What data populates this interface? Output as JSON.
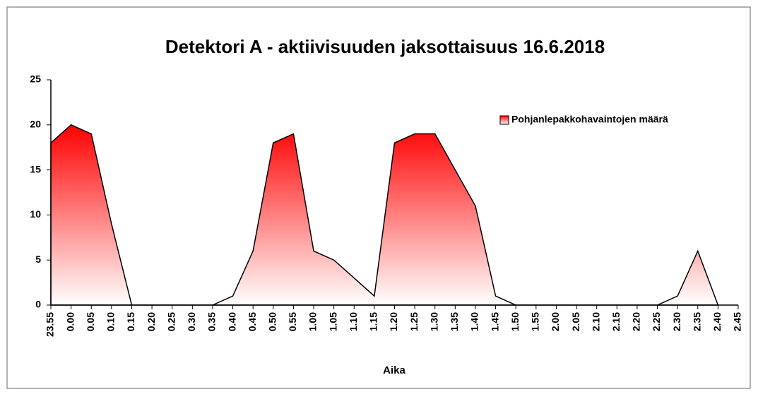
{
  "chart_data": {
    "type": "area",
    "title": "Detektori A - aktiivisuuden jaksottaisuus 16.6.2018",
    "x_label": "Aika",
    "categories": [
      "23.55",
      "0.00",
      "0.05",
      "0.10",
      "0.15",
      "0.20",
      "0.25",
      "0.30",
      "0.35",
      "0.40",
      "0.45",
      "0.50",
      "0.55",
      "1.00",
      "1.05",
      "1.10",
      "1.15",
      "1.20",
      "1.25",
      "1.30",
      "1.35",
      "1.40",
      "1.45",
      "1.50",
      "1.55",
      "2.00",
      "2.05",
      "2.10",
      "2.15",
      "2.20",
      "2.25",
      "2.30",
      "2.35",
      "2.40",
      "2.45"
    ],
    "series": [
      {
        "name": "Pohjanlepakkohavaintojen määrä",
        "color": "#ff0000",
        "values": [
          18,
          20,
          19,
          9,
          0,
          0,
          0,
          0,
          0,
          1,
          6,
          18,
          19,
          6,
          5,
          3,
          1,
          18,
          19,
          19,
          15,
          11,
          1,
          0,
          0,
          0,
          0,
          0,
          0,
          0,
          0,
          1,
          6,
          0,
          null
        ]
      }
    ],
    "ylim": [
      0,
      25
    ],
    "yticks": [
      0,
      5,
      10,
      15,
      20,
      25
    ],
    "legend": "upper right",
    "grid": false
  }
}
